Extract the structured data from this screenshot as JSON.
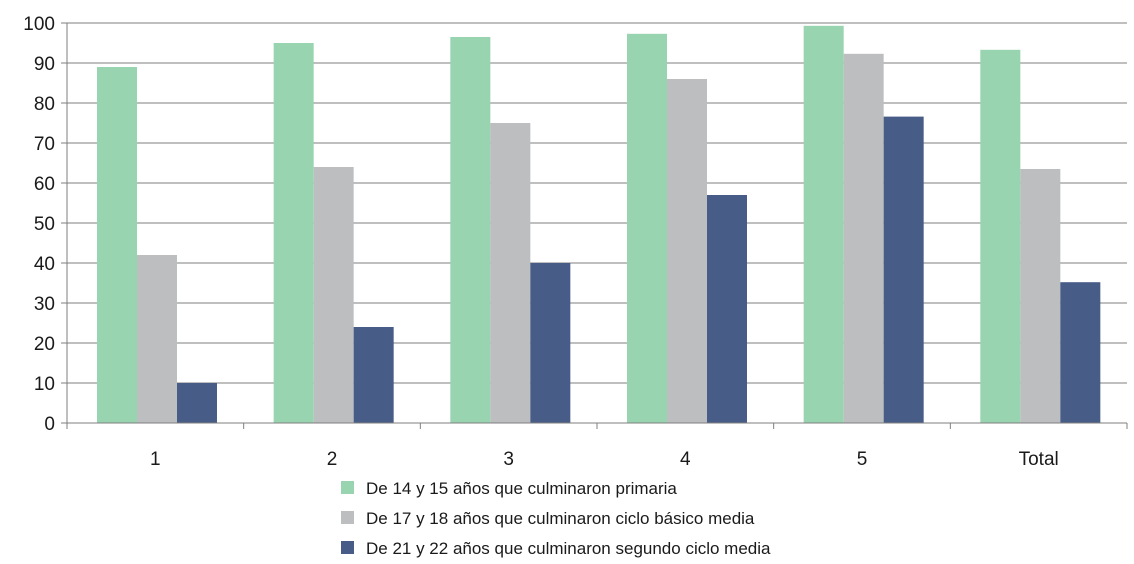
{
  "chart_data": {
    "type": "bar",
    "categories": [
      "1",
      "2",
      "3",
      "4",
      "5",
      "Total"
    ],
    "series": [
      {
        "name": "De 14 y 15 años que culminaron primaria",
        "color": "#98d4b0",
        "values": [
          89,
          95,
          96.5,
          97.3,
          99.3,
          93.3
        ]
      },
      {
        "name": "De 17 y 18 años que culminaron ciclo básico media",
        "color": "#bdbec0",
        "values": [
          42,
          64,
          75,
          86,
          92.3,
          63.5
        ]
      },
      {
        "name": "De 21 y 22 años que culminaron segundo ciclo media",
        "color": "#475c87",
        "values": [
          10,
          24,
          40,
          57,
          76.6,
          35.2
        ]
      }
    ],
    "ylim": [
      0,
      100
    ],
    "yticks": [
      0,
      10,
      20,
      30,
      40,
      50,
      60,
      70,
      80,
      90,
      100
    ],
    "grid": true,
    "legend_position": "bottom",
    "title": "",
    "xlabel": "",
    "ylabel": ""
  }
}
